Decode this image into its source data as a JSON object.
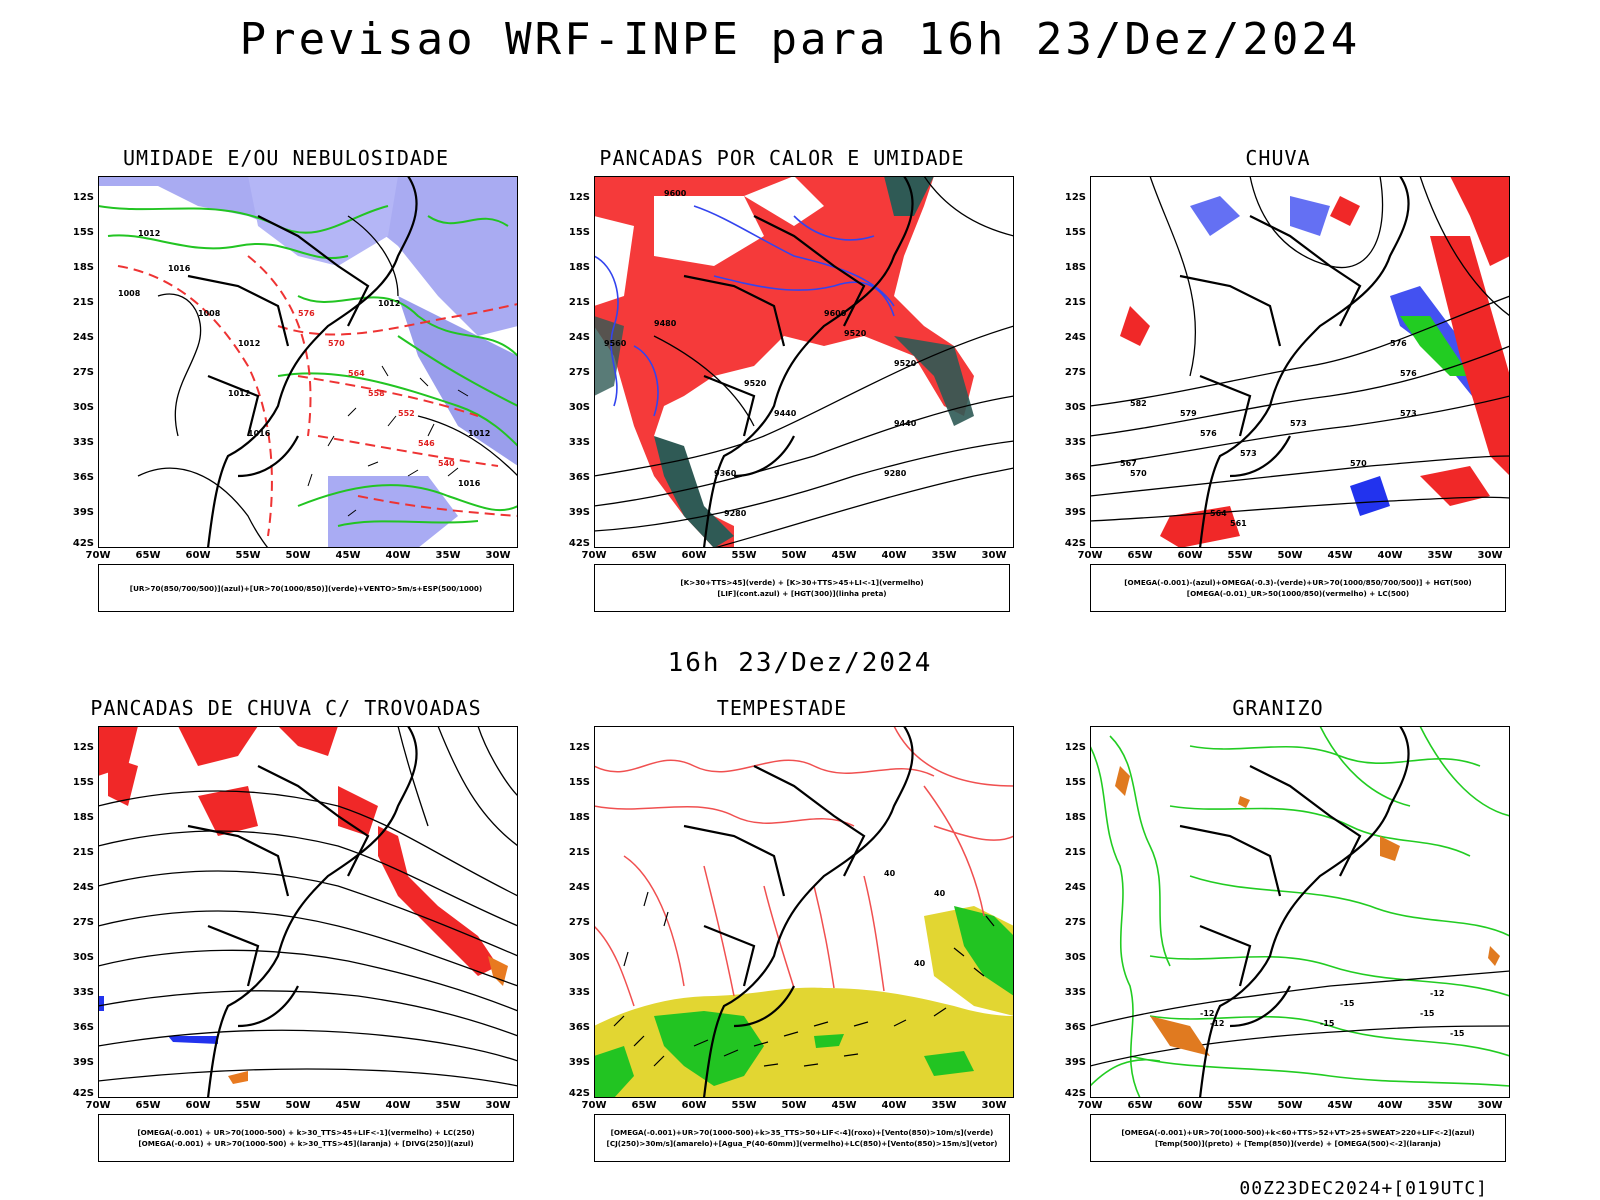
{
  "header": {
    "title": "Previsao WRF-INPE  para 16h 23/Dez/2024"
  },
  "middle_title": "16h 23/Dez/2024",
  "footer": "00Z23DEC2024+[019UTC]",
  "axes": {
    "lat_labels": [
      "12S",
      "15S",
      "18S",
      "21S",
      "24S",
      "27S",
      "30S",
      "33S",
      "36S",
      "39S",
      "42S"
    ],
    "lon_labels": [
      "70W",
      "65W",
      "60W",
      "55W",
      "50W",
      "45W",
      "40W",
      "35W",
      "30W"
    ]
  },
  "panels": [
    {
      "id": "umidade",
      "title": "UMIDADE E/OU NEBULOSIDADE",
      "legend": [
        "[UR>70(850/700/500)](azul)+[UR>70(1000/850)](verde)+VENTO>5m/s+ESP(500/1000)"
      ],
      "contour_labels": [
        "1012",
        "1016",
        "1008",
        "1008",
        "1012",
        "1012",
        "1016",
        "1012",
        "576",
        "570",
        "564",
        "558",
        "552",
        "546",
        "540",
        "1016",
        "1012"
      ],
      "colors": {
        "blue": "#8f93ea",
        "green": "#22c422",
        "red": "#ee3333"
      }
    },
    {
      "id": "pancadas-calor",
      "title": "PANCADAS POR CALOR E UMIDADE",
      "legend": [
        "[K>30+TTS>45](verde) + [K>30+TTS>45+LI<-1](vermelho)",
        "[LIF](cont.azul) + [HGT(300)](linha preta)"
      ],
      "contour_labels": [
        "9600",
        "9560",
        "9520",
        "9520",
        "9480",
        "9440",
        "9440",
        "9360",
        "9280",
        "9280",
        "9600",
        "9520"
      ],
      "colors": {
        "red": "#f53a3a",
        "teal": "#2f5a55",
        "blue": "#3344ee"
      }
    },
    {
      "id": "chuva",
      "title": "CHUVA",
      "legend": [
        "[OMEGA(-0.001)-(azul)+OMEGA(-0.3)-(verde)+UR>70(1000/850/700/500)] + HGT(500)",
        "[OMEGA(-0.01)_UR>50(1000/850)(vermelho) + LC(500)"
      ],
      "contour_labels": [
        "576",
        "576",
        "573",
        "570",
        "567",
        "573",
        "570",
        "564",
        "561",
        "582",
        "579",
        "576",
        "573"
      ],
      "colors": {
        "red": "#f02828",
        "green": "#22cc22",
        "blue": "#2233ee"
      }
    },
    {
      "id": "pancadas-trovoadas",
      "title": "PANCADAS DE CHUVA C/ TROVOADAS",
      "legend": [
        "[OMEGA(-0.001) + UR>70(1000-500) + k>30_TTS>45+LIF<-1](vermelho) + LC(250)",
        "[OMEGA(-0.001) + UR>70(1000-500) + k>30_TTS>45](laranja) + [DIVG(250)](azul)"
      ],
      "contour_labels": [],
      "colors": {
        "red": "#f02828",
        "orange": "#e87a20",
        "blue": "#2233ee"
      }
    },
    {
      "id": "tempestade",
      "title": "TEMPESTADE",
      "legend": [
        "[OMEGA(-0.001)+UR>70(1000-500)+k>35_TTS>50+LIF<-4](roxo)+[Vento(850)>10m/s](verde)",
        "[CJ(250)>30m/s](amarelo)+[Agua_P(40-60mm)](vermelho)+LC(850)+[Vento(850)>15m/s](vetor)"
      ],
      "contour_labels": [
        "40",
        "40",
        "40"
      ],
      "colors": {
        "yellow": "#e2d632",
        "green": "#22c422",
        "red": "#f05050"
      }
    },
    {
      "id": "granizo",
      "title": "GRANIZO",
      "legend": [
        "[OMEGA(-0.001)+UR>70(1000-500)+k<60+TTS>52+VT>25+SWEAT>220+LIF<-2](azul)",
        "[Temp(500)](preto) + [Temp(850)](verde) + [OMEGA(500)<-2](laranja)"
      ],
      "contour_labels": [
        "-12",
        "-12",
        "-15",
        "-15",
        "-12",
        "-15",
        "-15"
      ],
      "colors": {
        "green": "#22cc22",
        "orange": "#e07a20",
        "black": "#000000"
      }
    }
  ]
}
